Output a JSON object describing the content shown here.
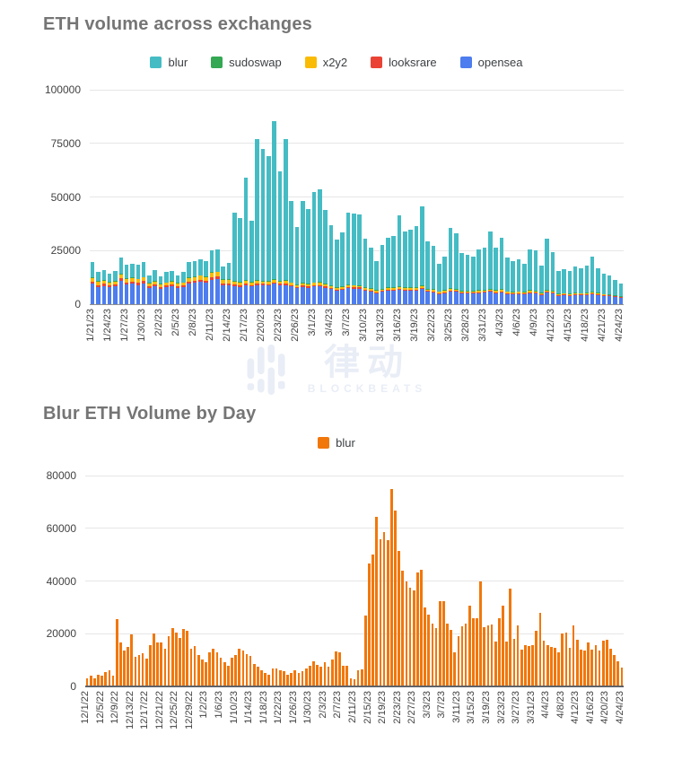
{
  "watermark": {
    "cn": "律动",
    "en": "BLOCKBEATS"
  },
  "charts": [
    {
      "title": "ETH volume across exchanges",
      "legend": [
        {
          "label": "blur",
          "color": "#45bcc4"
        },
        {
          "label": "sudoswap",
          "color": "#34a853"
        },
        {
          "label": "x2y2",
          "color": "#fabb05"
        },
        {
          "label": "looksrare",
          "color": "#ea4335"
        },
        {
          "label": "opensea",
          "color": "#4d7dee"
        }
      ],
      "chart_data": {
        "type": "bar",
        "stacked": true,
        "title": "ETH volume across exchanges",
        "date_start": "1/21/23",
        "date_end": "4/24/23",
        "days": 94,
        "ylim": [
          0,
          100000
        ],
        "y_ticks": [
          0,
          25000,
          50000,
          75000,
          100000
        ],
        "x_label_every": 3,
        "x_tick_labels": [
          "1/21/23",
          "1/24/23",
          "1/27/23",
          "1/30/23",
          "2/2/23",
          "2/5/23",
          "2/8/23",
          "2/11/23",
          "2/14/23",
          "2/17/23",
          "2/20/23",
          "2/23/23",
          "2/26/23",
          "3/1/23",
          "3/4/23",
          "3/7/23",
          "3/10/23",
          "3/13/23",
          "3/16/23",
          "3/19/23",
          "3/22/23",
          "3/25/23",
          "3/28/23",
          "3/31/23",
          "4/3/23",
          "4/6/23",
          "4/9/23",
          "4/12/23",
          "4/15/23",
          "4/18/23",
          "4/21/23",
          "4/24/23"
        ],
        "totals": [
          19500,
          15000,
          16000,
          14200,
          15600,
          21700,
          18300,
          19000,
          18300,
          19600,
          13500,
          15800,
          12900,
          14900,
          15600,
          13500,
          14900,
          19600,
          20300,
          21000,
          20300,
          25300,
          25700,
          17600,
          19200,
          42500,
          40000,
          59000,
          39000,
          77200,
          72500,
          69000,
          85500,
          61800,
          77200,
          48000,
          35800,
          48000,
          44500,
          52300,
          53500,
          44000,
          37000,
          30000,
          33500,
          42800,
          42300,
          42000,
          30500,
          26400,
          20200,
          27700,
          31100,
          31800,
          41400,
          33900,
          34600,
          36600,
          45500,
          29100,
          27000,
          18900,
          22300,
          35500,
          33000,
          24000,
          23000,
          22000,
          25700,
          26400,
          33900,
          26300,
          31000,
          21600,
          20300,
          20900,
          18900,
          25700,
          25200,
          18200,
          30400,
          24300,
          15500,
          16200,
          15500,
          17600,
          16900,
          18200,
          22300,
          16900,
          14200,
          13500,
          11500,
          9500
        ],
        "stack_order_bottom_to_top": [
          "opensea",
          "looksrare",
          "x2y2",
          "sudoswap",
          "blur"
        ],
        "series": [
          {
            "name": "opensea",
            "color": "#4d7dee",
            "values": [
              9500,
              8000,
              8500,
              7800,
              8200,
              11000,
              9200,
              9500,
              9000,
              9700,
              7500,
              8300,
              7200,
              7800,
              8200,
              7500,
              7800,
              9700,
              10000,
              10300,
              10000,
              11500,
              11700,
              8800,
              8800,
              8500,
              8000,
              9000,
              8200,
              9000,
              8800,
              8600,
              9500,
              8800,
              9000,
              8200,
              7500,
              8000,
              7600,
              8200,
              8300,
              7600,
              7000,
              6300,
              6600,
              7400,
              7300,
              7200,
              6300,
              5900,
              5200,
              5800,
              6200,
              6300,
              6800,
              6200,
              6300,
              6400,
              7000,
              5800,
              5600,
              4800,
              5200,
              6000,
              5800,
              5100,
              5000,
              4900,
              5200,
              5300,
              5800,
              5200,
              5600,
              4800,
              4700,
              4800,
              4500,
              5200,
              5100,
              4400,
              5400,
              4900,
              4000,
              4100,
              4000,
              4200,
              4100,
              4300,
              4700,
              4200,
              3800,
              3700,
              3400,
              3000
            ]
          },
          {
            "name": "looksrare",
            "color": "#ea4335",
            "values": [
              1000,
              900,
              950,
              850,
              900,
              1100,
              950,
              950,
              950,
              1000,
              800,
              850,
              750,
              800,
              850,
              800,
              800,
              950,
              1000,
              1100,
              1000,
              1200,
              1200,
              900,
              900,
              800,
              750,
              800,
              700,
              750,
              700,
              700,
              750,
              700,
              700,
              650,
              600,
              650,
              600,
              650,
              650,
              600,
              550,
              500,
              520,
              550,
              550,
              550,
              500,
              460,
              410,
              460,
              500,
              500,
              520,
              500,
              500,
              500,
              550,
              460,
              440,
              380,
              410,
              460,
              460,
              410,
              380,
              380,
              410,
              410,
              460,
              410,
              440,
              380,
              360,
              380,
              360,
              410,
              410,
              360,
              440,
              380,
              330,
              330,
              330,
              330,
              330,
              360,
              380,
              330,
              300,
              300,
              270,
              250
            ]
          },
          {
            "name": "x2y2",
            "color": "#fabb05",
            "values": [
              1900,
              1700,
              1800,
              1600,
              1700,
              2000,
              1800,
              1800,
              1800,
              1900,
              1500,
              1600,
              1400,
              1500,
              1600,
              1500,
              1500,
              1800,
              1900,
              2000,
              1900,
              2200,
              2200,
              1700,
              1700,
              1500,
              1400,
              1500,
              1300,
              1400,
              1300,
              1300,
              1400,
              1300,
              1300,
              1200,
              1100,
              1200,
              1100,
              1200,
              1200,
              1100,
              1000,
              900,
              950,
              1000,
              1000,
              1000,
              900,
              850,
              750,
              850,
              900,
              900,
              950,
              900,
              900,
              900,
              1000,
              850,
              800,
              700,
              750,
              850,
              850,
              750,
              700,
              700,
              750,
              750,
              850,
              750,
              800,
              700,
              650,
              700,
              650,
              750,
              750,
              650,
              800,
              700,
              600,
              600,
              600,
              600,
              600,
              650,
              700,
              600,
              550,
              550,
              500,
              450
            ]
          },
          {
            "name": "sudoswap",
            "color": "#34a853",
            "constant": 150
          },
          {
            "name": "blur",
            "color": "#45bcc4",
            "remainder": true
          }
        ]
      }
    },
    {
      "title": "Blur ETH Volume by Day",
      "legend": [
        {
          "label": "blur",
          "color": "#f1770b"
        }
      ],
      "chart_data": {
        "type": "bar",
        "stacked": false,
        "title": "Blur ETH Volume by Day",
        "date_start": "12/1/22",
        "date_end": "4/24/23",
        "days": 145,
        "ylim": [
          0,
          80000
        ],
        "y_ticks": [
          0,
          20000,
          40000,
          60000,
          80000
        ],
        "x_label_every": 4,
        "x_tick_labels": [
          "12/1/22",
          "12/5/22",
          "12/9/22",
          "12/13/22",
          "12/17/22",
          "12/21/22",
          "12/25/22",
          "12/29/22",
          "1/2/23",
          "1/6/23",
          "1/10/23",
          "1/14/23",
          "1/18/23",
          "1/22/23",
          "1/26/23",
          "1/30/23",
          "2/3/23",
          "2/7/23",
          "2/11/23",
          "2/15/23",
          "2/19/23",
          "2/23/23",
          "2/27/23",
          "3/3/23",
          "3/7/23",
          "3/11/23",
          "3/15/23",
          "3/19/23",
          "3/23/23",
          "3/27/23",
          "3/31/23",
          "4/4/23",
          "4/8/23",
          "4/12/23",
          "4/16/23",
          "4/20/23",
          "4/24/23"
        ],
        "series": [
          {
            "name": "blur",
            "color": "#f1770b",
            "values": [
              2900,
              4000,
              3100,
              4600,
              4000,
              5400,
              6300,
              4200,
              25500,
              16600,
              13700,
              15100,
              19700,
              11400,
              12000,
              12600,
              10500,
              15700,
              20000,
              16600,
              16800,
              14300,
              19100,
              22300,
              20600,
              18300,
              21700,
              21100,
              14300,
              15400,
              12000,
              10300,
              9100,
              12900,
              14300,
              13000,
              11000,
              9100,
              8000,
              10900,
              12000,
              14300,
              13500,
              12300,
              11500,
              8600,
              7400,
              6300,
              5100,
              4600,
              6900,
              6900,
              6300,
              5700,
              4600,
              5100,
              6300,
              5100,
              5700,
              6900,
              8000,
              9700,
              8200,
              7400,
              9100,
              7400,
              10300,
              13400,
              12900,
              7800,
              7700,
              2900,
              2600,
              6300,
              6500,
              27000,
              46500,
              50000,
              64500,
              56000,
              58500,
              55400,
              74800,
              66800,
              51500,
              44000,
              40000,
              37400,
              36500,
              43100,
              44200,
              30000,
              27200,
              23700,
              22000,
              32300,
              32300,
              23700,
              21500,
              13000,
              19200,
              22800,
              24000,
              30800,
              25800,
              26000,
              39900,
              22600,
              23200,
              23500,
              17000,
              26000,
              30500,
              17000,
              37000,
              18100,
              23200,
              14100,
              15800,
              15200,
              15800,
              21000,
              27800,
              17500,
              15500,
              15000,
              14500,
              13000,
              20200,
              20500,
              14800,
              23200,
              17800,
              14000,
              13500,
              16800,
              14000,
              15800,
              13500,
              17400,
              17800,
              14300,
              12000,
              9500,
              7200
            ]
          }
        ]
      }
    }
  ]
}
